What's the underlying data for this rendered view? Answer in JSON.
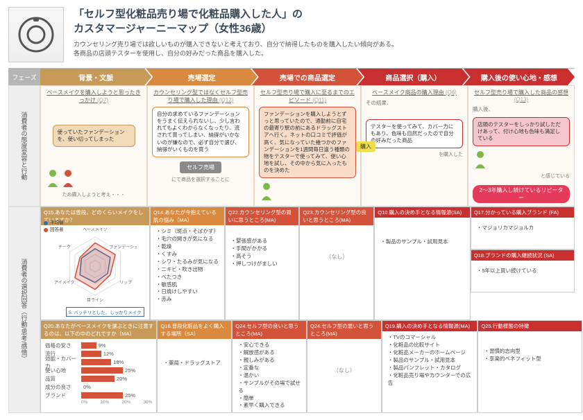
{
  "header": {
    "title_line1": "「セルフ型化粧品売り場で化粧品購入した人」の",
    "title_line2": "カスタマージャーニーマップ（女性36歳）",
    "desc1": "カウンセリング売り場では欲しいものが購入できないと考えており、自分で納得したものを購入したい傾向がある。",
    "desc2": "各商品の店頭テスターを使用し、自分の好みだった商品を購入した。"
  },
  "phase_label": "フェーズ",
  "phases": [
    {
      "label": "背景・文脈",
      "bg": "#c79a5a"
    },
    {
      "label": "売場選定",
      "bg": "#d98a3e"
    },
    {
      "label": "売場での商品選定",
      "bg": "#d4513a"
    },
    {
      "label": "商品選択（購入）",
      "bg": "#c92f2f"
    },
    {
      "label": "購入後の使い心地・感想",
      "bg": "#c92f2f"
    }
  ],
  "side1": "消費者の態度変容と行動",
  "side2": "消費者の選択回答（行動/思考/感情）",
  "col1": {
    "title": "ベースメイクを購入しようと思ったきっかけ",
    "q": "(Q7)",
    "bubble": "使っていたファンデーションを、使い切ってしまった",
    "bubble_bg": "#f2d9b8",
    "bubble_border": "#c79a5a",
    "note": "ため購入しようと考え・・・"
  },
  "col2": {
    "title": "カウンセリング型ではなくセルフ型売り場で購入した理由",
    "q": "(Q12)",
    "bubble": "自分の求めているファンデーションをうまく伝えられないし、少し言われてもよくわからなくなったり、流されて買ってしまい、納得がいかないのが嫌なので、必ず自分で選び、納得がいくものを買う",
    "bubble_bg": "#fff",
    "bubble_border": "#d98a3e",
    "tag": "セルフ売場",
    "note": "にて商品を選択することに"
  },
  "col3": {
    "title": "セルフ型売り場で購入に至るまでのエピソード",
    "q": "(Q11)",
    "bubble": "ファンデーションを購入しようとずっと思っていたので、通勤前に自宅の最寄り駅の前にあるドラッグストアへ行く。ネットの口コミで評価が高く、気になっていた幾つかのファンデーションを1週間毎日違う種類の物をテスターで使ってみて、使い心地を試し、その中から気に入ったものを決めた",
    "bubble_bg": "#f8dcc8",
    "bubble_border": "#d4513a"
  },
  "col4": {
    "title": "ベースメイク商品の購入理由",
    "q": "(Q6)",
    "sonogo": "その結果、",
    "bubble": "テスターを使ってみて、カバー力にもあり、色味も自然だったので自分の好みだった商品",
    "bubble_bg": "#fff",
    "bubble_border": "#c92f2f",
    "note": "を購入した",
    "kouyuu": "購入"
  },
  "col5": {
    "title": "セルフ型売り場で購入した商品の感想",
    "q": "(Q13)",
    "sonogo": "購入後、",
    "bubble": "店頭のテスターをしっかり試しただけあって、付け心地も色味も満足している",
    "bubble_bg": "#f6c6ce",
    "bubble_border": "#c92f2f",
    "note": "と感じている",
    "pill": "2〜3年購入し続けているリピーター"
  },
  "cards": {
    "q15": {
      "hd": "Q15.あなたは普段、どのくらいメイクをしていますか？",
      "bg": "#c79a5a",
      "legend": [
        {
          "label": "平均値",
          "color": "#3a6ea5"
        },
        {
          "label": "回答者",
          "color": "#d4513a"
        }
      ],
      "radar": {
        "axes": [
          "ベースメイク",
          "ファンデーション",
          "リップ",
          "目ライン",
          "アイメイク",
          "チーク"
        ],
        "avg": [
          3,
          3,
          2.5,
          2.8,
          3,
          2.7
        ],
        "resp": [
          4,
          4,
          3,
          4,
          4,
          3
        ],
        "max": 5
      },
      "foot": "5. バッチリとした、しっかりメイク"
    },
    "q14": {
      "hd": "Q14.あなたが今抱えている肌の悩み（MA）",
      "bg": "#d98a3e",
      "items": [
        "シミ（斑点・そばかす）",
        "毛穴の開きが気になる",
        "乾燥",
        "くすみ",
        "シワ・たるみが気になる",
        "ニキビ・吹き出物",
        "べたつき",
        "敏感肌",
        "日焼けしやすい",
        "赤み"
      ]
    },
    "q22": {
      "hd": "Q22.カウンセリング型の買いに思うところ(MA)",
      "bg": "#d4513a",
      "items": [
        "緊張感がある",
        "手間がかかる",
        "高そう",
        "押しつけがましい"
      ]
    },
    "q23": {
      "hd": "Q23.カウンセリング型の良いと思うところ(MA)",
      "bg": "#d4513a",
      "body": "（なし）"
    },
    "q10": {
      "hd": "Q10.購入の決め手となる情報源(SA)",
      "bg": "#c92f2f",
      "items": [
        "製品のサンプル・試用見本"
      ]
    },
    "q17": {
      "hd": "Q17.分かっている購入ブランド (FA)",
      "bg": "#c92f2f",
      "items": [
        "マジョリカマジョルカ"
      ]
    },
    "q18": {
      "hd": "Q18.ブランドの購入継続状況 (SA)",
      "bg": "#c92f2f",
      "items": [
        "5年以上買い続けている"
      ]
    },
    "q20": {
      "hd": "Q20.あなたがベースメイクを選ぶときに注意するのは、以下の中のどれですか（MA）",
      "bg": "#c79a5a",
      "bars": [
        {
          "label": "価格の安さ",
          "val": 9,
          "pct": "9%"
        },
        {
          "label": "流行",
          "val": 12,
          "pct": "12%"
        },
        {
          "label": "効能・カバー力",
          "val": 18,
          "pct": "18%"
        },
        {
          "label": "使い心地",
          "val": 25,
          "pct": "25%"
        },
        {
          "label": "品質",
          "val": 20,
          "pct": "20%"
        },
        {
          "label": "成分の良さ",
          "val": 0,
          "pct": "0%"
        },
        {
          "label": "ブランド",
          "val": 25,
          "pct": "25%"
        }
      ],
      "axis": [
        "0%",
        "10%",
        "20%",
        "30%"
      ]
    },
    "q16": {
      "hd": "Q16.普段化粧品をよく購入する場所（SA）",
      "bg": "#d98a3e",
      "items": [
        "薬局・ドラッグストア"
      ]
    },
    "q24": {
      "hd": "Q24.セルフ型の良いと思うところ(MA)",
      "bg": "#d4513a",
      "items": [
        "安心できる",
        "解放感がある",
        "親しみがある",
        "定番な",
        "温かい",
        "サンプルがその場で試せる",
        "簡単",
        "素早く購入できる"
      ]
    },
    "q24b": {
      "hd": "Q24.セルフ型の悪いと思うところ(MA)",
      "bg": "#d4513a",
      "body": "（なし）"
    },
    "q19": {
      "hd": "Q19.購入の決め手となる情報源(MA)",
      "bg": "#c92f2f",
      "items": [
        "TVのコマーシャル",
        "化粧品の比較サイト",
        "化粧品メーカーのホームページ",
        "製品のサンプル・試用見本",
        "製品パンフレット・カタログ",
        "化粧品売り場やカウンターでの広告"
      ]
    },
    "q25": {
      "hd": "Q25.行動様態の特徴",
      "bg": "#c92f2f",
      "items": [
        "習慣的志向型",
        "享楽的ベネフィット型"
      ]
    }
  }
}
